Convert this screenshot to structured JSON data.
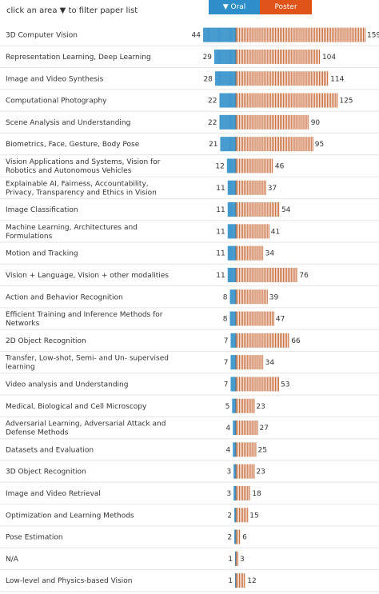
{
  "header": {
    "filter_hint": "click an area",
    "filter_hint_arrow": "▼",
    "filter_hint_tail": "to filter paper list",
    "oral_button": "▼ Oral",
    "poster_button": "Poster"
  },
  "colors": {
    "oral": "#2e8ec9",
    "poster": "#e0541a",
    "oral_stripe": "#5aa8d6",
    "poster_stripe": "#c0612c",
    "row_divider": "#e6e6e6"
  },
  "chart_data": {
    "type": "bar",
    "layout": "diverging-horizontal",
    "categories": [
      "3D Computer Vision",
      "Representation Learning, Deep Learning",
      "Image and Video Synthesis",
      "Computational Photography",
      "Scene Analysis and Understanding",
      "Biometrics, Face, Gesture, Body Pose",
      "Vision Applications and Systems, Vision for Robotics and Autonomous Vehicles",
      "Explainable AI, Fairness, Accountability, Privacy, Transparency and Ethics in Vision",
      "Image Classification",
      "Machine Learning, Architectures and Formulations",
      "Motion and Tracking",
      "Vision + Language, Vision + other modalities",
      "Action and Behavior Recognition",
      "Efficient Training and Inference Methods for Networks",
      "2D Object Recognition",
      "Transfer, Low-shot, Semi- and Un- supervised learning",
      "Video analysis and Understanding",
      "Medical, Biological and Cell Microscopy",
      "Adversarial Learning, Adversarial Attack and Defense Methods",
      "Datasets and Evaluation",
      "3D Object Recognition",
      "Image and Video Retrieval",
      "Optimization and Learning Methods",
      "Pose Estimation",
      "N/A",
      "Low-level and Physics-based Vision"
    ],
    "series": [
      {
        "name": "Oral",
        "values": [
          44,
          29,
          28,
          22,
          22,
          21,
          12,
          11,
          11,
          11,
          11,
          11,
          8,
          8,
          7,
          7,
          7,
          5,
          4,
          4,
          3,
          3,
          2,
          2,
          1,
          1
        ]
      },
      {
        "name": "Poster",
        "values": [
          159,
          104,
          114,
          125,
          90,
          95,
          46,
          37,
          54,
          41,
          34,
          76,
          39,
          47,
          66,
          34,
          53,
          23,
          27,
          25,
          23,
          18,
          15,
          6,
          3,
          12
        ]
      }
    ]
  }
}
